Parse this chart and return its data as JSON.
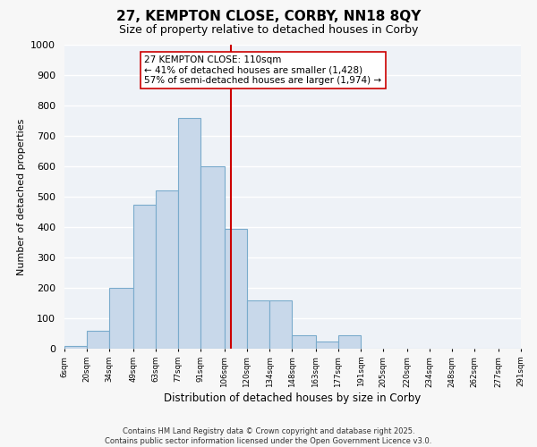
{
  "title": "27, KEMPTON CLOSE, CORBY, NN18 8QY",
  "subtitle": "Size of property relative to detached houses in Corby",
  "xlabel": "Distribution of detached houses by size in Corby",
  "ylabel": "Number of detached properties",
  "bar_edges": [
    6,
    20,
    34,
    49,
    63,
    77,
    91,
    106,
    120,
    134,
    148,
    163,
    177,
    191,
    205,
    220,
    234,
    248,
    262,
    277,
    291
  ],
  "bar_heights": [
    10,
    60,
    200,
    475,
    520,
    760,
    600,
    395,
    160,
    160,
    45,
    25,
    45,
    0,
    0,
    0,
    0,
    0,
    0,
    0
  ],
  "bar_color": "#c8d8ea",
  "bar_edge_color": "#7aabcc",
  "vline_x": 110,
  "vline_color": "#cc0000",
  "annotation_line1": "27 KEMPTON CLOSE: 110sqm",
  "annotation_line2": "← 41% of detached houses are smaller (1,428)",
  "annotation_line3": "57% of semi-detached houses are larger (1,974) →",
  "annotation_box_color": "#ffffff",
  "annotation_box_edge_color": "#cc0000",
  "tick_labels": [
    "6sqm",
    "20sqm",
    "34sqm",
    "49sqm",
    "63sqm",
    "77sqm",
    "91sqm",
    "106sqm",
    "120sqm",
    "134sqm",
    "148sqm",
    "163sqm",
    "177sqm",
    "191sqm",
    "205sqm",
    "220sqm",
    "234sqm",
    "248sqm",
    "262sqm",
    "277sqm",
    "291sqm"
  ],
  "ylim": [
    0,
    1000
  ],
  "yticks": [
    0,
    100,
    200,
    300,
    400,
    500,
    600,
    700,
    800,
    900,
    1000
  ],
  "bg_color": "#eef2f7",
  "grid_color": "#ffffff",
  "fig_bg_color": "#f7f7f7",
  "footer_line1": "Contains HM Land Registry data © Crown copyright and database right 2025.",
  "footer_line2": "Contains public sector information licensed under the Open Government Licence v3.0."
}
